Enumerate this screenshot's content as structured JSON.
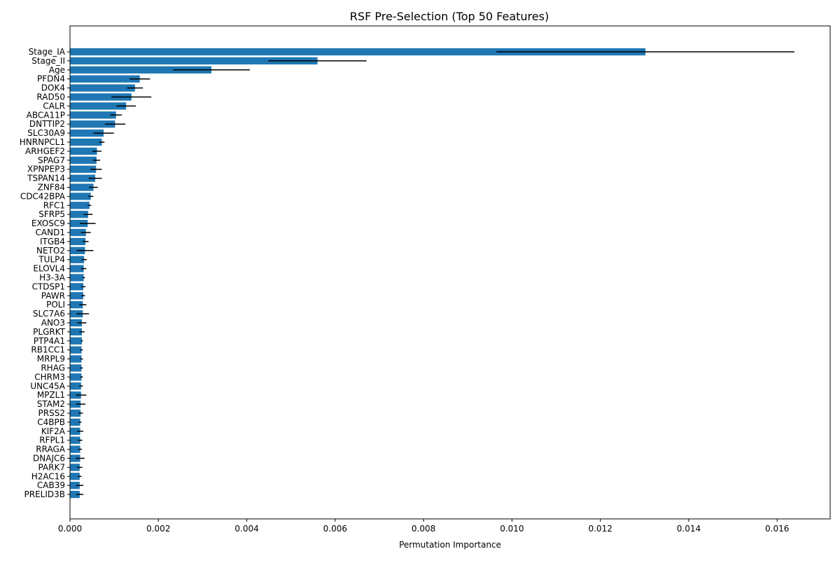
{
  "chart_data": {
    "type": "bar",
    "orientation": "horizontal",
    "title": "RSF Pre-Selection (Top 50 Features)",
    "xlabel": "Permutation Importance",
    "ylabel": "",
    "xlim": [
      0,
      0.0172
    ],
    "xticks": [
      0.0,
      0.002,
      0.004,
      0.006,
      0.008,
      0.01,
      0.012,
      0.014,
      0.016
    ],
    "xtick_labels": [
      "0.000",
      "0.002",
      "0.004",
      "0.006",
      "0.008",
      "0.010",
      "0.012",
      "0.014",
      "0.016"
    ],
    "bar_color": "#1f77b4",
    "error_color": "#000000",
    "grid": false,
    "categories": [
      "Stage_IA",
      "Stage_II",
      "Age",
      "PFDN4",
      "DOK4",
      "RAD50",
      "CALR",
      "ABCA11P",
      "DNTTIP2",
      "SLC30A9",
      "HNRNPCL1",
      "ARHGEF2",
      "SPAG7",
      "XPNPEP3",
      "TSPAN14",
      "ZNF84",
      "CDC42BPA",
      "RFC1",
      "SFRP5",
      "EXOSC9",
      "CAND1",
      "ITGB4",
      "NETO2",
      "TULP4",
      "ELOVL4",
      "H3-3A",
      "CTDSP1",
      "PAWR",
      "POLI",
      "SLC7A6",
      "ANO3",
      "PLGRKT",
      "PTP4A1",
      "RB1CC1",
      "MRPL9",
      "RHAG",
      "CHRM3",
      "UNC45A",
      "MPZL1",
      "STAM2",
      "PRSS2",
      "C4BPB",
      "KIF2A",
      "RFPL1",
      "RRAGA",
      "DNAJC6",
      "PARK7",
      "H2AC16",
      "CAB39",
      "PRELID3B"
    ],
    "values": [
      0.01302,
      0.0056,
      0.0032,
      0.00158,
      0.00147,
      0.00139,
      0.00127,
      0.00104,
      0.00102,
      0.00076,
      0.00072,
      0.00061,
      0.0006,
      0.00059,
      0.00057,
      0.00053,
      0.00047,
      0.00044,
      0.00041,
      0.0004,
      0.00036,
      0.00035,
      0.00034,
      0.00032,
      0.00031,
      0.00031,
      0.0003,
      0.0003,
      0.00029,
      0.00029,
      0.00027,
      0.00027,
      0.00027,
      0.00026,
      0.00026,
      0.00026,
      0.00026,
      0.00025,
      0.00025,
      0.00024,
      0.00024,
      0.00023,
      0.00023,
      0.00023,
      0.00023,
      0.00023,
      0.00022,
      0.00022,
      0.00022,
      0.00022
    ],
    "errors": [
      0.00337,
      0.00111,
      0.00087,
      0.00023,
      0.00018,
      0.00045,
      0.00022,
      0.00013,
      0.00023,
      0.00023,
      6e-05,
      0.0001,
      8e-05,
      0.00013,
      0.00015,
      0.0001,
      6e-05,
      4e-05,
      0.0001,
      0.00018,
      0.00011,
      7e-05,
      0.00019,
      6e-05,
      6e-05,
      3e-05,
      5e-05,
      4e-05,
      8e-05,
      0.00014,
      0.0001,
      6e-05,
      2e-05,
      3e-05,
      3e-05,
      3e-05,
      3e-05,
      4e-05,
      0.00012,
      0.00011,
      5e-05,
      3e-05,
      7e-05,
      5e-05,
      4e-05,
      0.0001,
      6e-05,
      4e-05,
      8e-05,
      8e-05
    ]
  }
}
